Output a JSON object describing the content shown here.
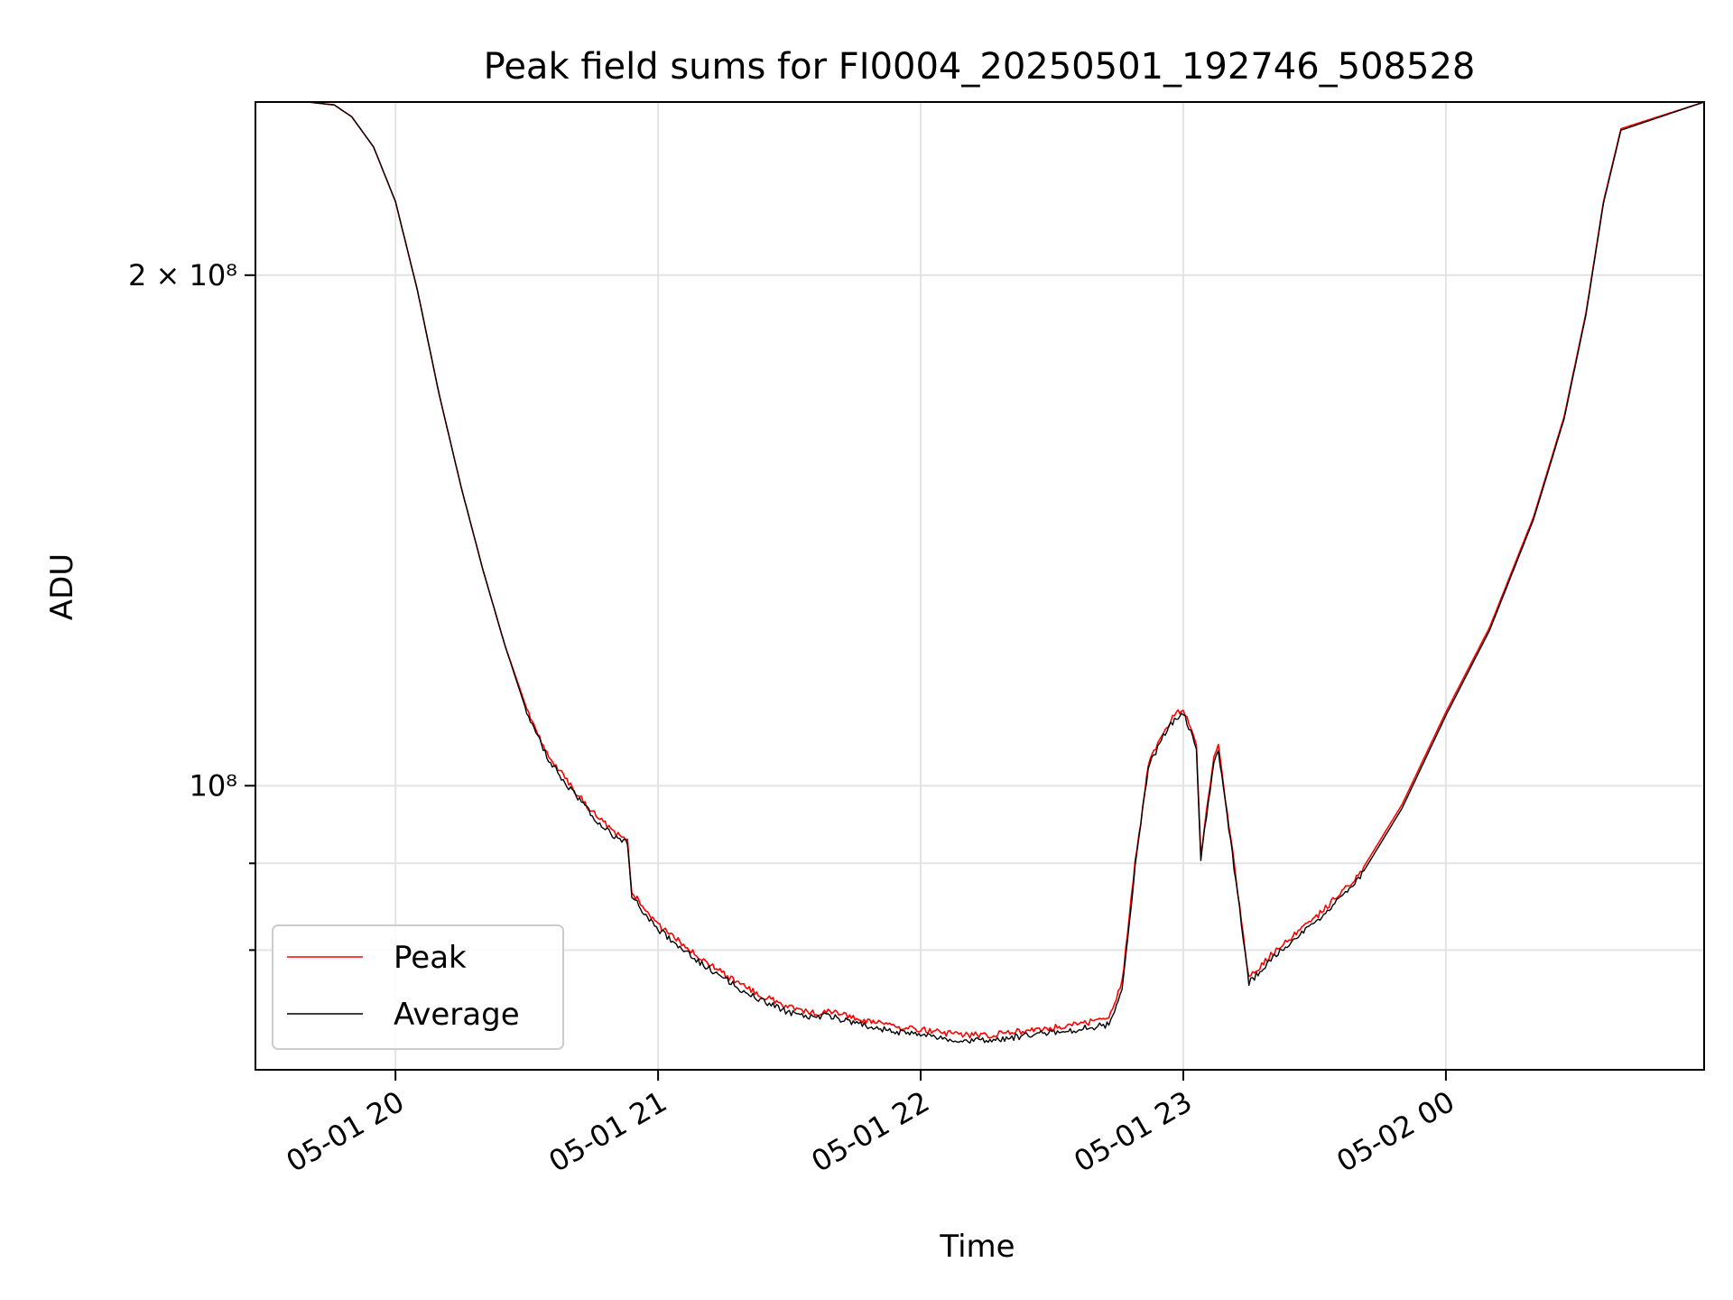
{
  "chart_data": {
    "type": "line",
    "title": "Peak field sums for FI0004_20250501_192746_508528",
    "xlabel": "Time",
    "ylabel": "ADU",
    "yscale": "log",
    "grid": true,
    "legend_position": "lower-left",
    "xlim": [
      "2025-05-01 19:28",
      "2025-05-02 00:59"
    ],
    "ylim": [
      68000000,
      253000000
    ],
    "x_ticks": [
      {
        "value": "2025-05-01 20:00",
        "label": "05-01 20"
      },
      {
        "value": "2025-05-01 21:00",
        "label": "05-01 21"
      },
      {
        "value": "2025-05-01 22:00",
        "label": "05-01 22"
      },
      {
        "value": "2025-05-01 23:00",
        "label": "05-01 23"
      },
      {
        "value": "2025-05-02 00:00",
        "label": "05-02 00"
      }
    ],
    "y_ticks": [
      {
        "value": 200000000,
        "label": "2 × 10⁸"
      },
      {
        "value": 100000000,
        "label": "10⁸"
      }
    ],
    "y_minor_ticks": [
      80000000,
      90000000
    ],
    "series": [
      {
        "name": "Peak",
        "color": "#ff0000",
        "x": [
          "2025-05-01 19:28",
          "2025-05-01 19:40",
          "2025-05-01 19:46",
          "2025-05-01 19:50",
          "2025-05-01 19:55",
          "2025-05-01 20:00",
          "2025-05-01 20:05",
          "2025-05-01 20:10",
          "2025-05-01 20:15",
          "2025-05-01 20:20",
          "2025-05-01 20:25",
          "2025-05-01 20:30",
          "2025-05-01 20:35",
          "2025-05-01 20:40",
          "2025-05-01 20:45",
          "2025-05-01 20:50",
          "2025-05-01 20:53",
          "2025-05-01 20:54",
          "2025-05-01 21:00",
          "2025-05-01 21:10",
          "2025-05-01 21:20",
          "2025-05-01 21:30",
          "2025-05-01 21:37",
          "2025-05-01 21:38",
          "2025-05-01 21:45",
          "2025-05-01 21:55",
          "2025-05-01 22:05",
          "2025-05-01 22:15",
          "2025-05-01 22:25",
          "2025-05-01 22:35",
          "2025-05-01 22:43",
          "2025-05-01 22:46",
          "2025-05-01 22:49",
          "2025-05-01 22:52",
          "2025-05-01 22:55",
          "2025-05-01 22:58",
          "2025-05-01 23:00",
          "2025-05-01 23:03",
          "2025-05-01 23:04",
          "2025-05-01 23:07",
          "2025-05-01 23:08",
          "2025-05-01 23:12",
          "2025-05-01 23:15",
          "2025-05-01 23:20",
          "2025-05-01 23:30",
          "2025-05-01 23:40",
          "2025-05-01 23:50",
          "2025-05-02 00:00",
          "2025-05-02 00:10",
          "2025-05-02 00:20",
          "2025-05-02 00:27",
          "2025-05-02 00:32",
          "2025-05-02 00:36",
          "2025-05-02 00:40",
          "2025-05-02 00:59"
        ],
        "values": [
          253000000,
          253000000,
          252000000,
          248000000,
          238000000,
          221000000,
          196000000,
          170000000,
          150000000,
          134000000,
          121000000,
          111000000,
          104000000,
          100000000,
          96500000,
          93800000,
          93000000,
          86500000,
          82800000,
          79000000,
          76000000,
          74000000,
          73400000,
          73800000,
          72900000,
          72100000,
          71500000,
          71200000,
          71800000,
          72300000,
          72800000,
          76500000,
          90000000,
          103000000,
          107000000,
          110000000,
          111000000,
          106000000,
          91000000,
          104000000,
          105500000,
          88500000,
          77000000,
          79500000,
          83500000,
          88500000,
          97500000,
          110500000,
          124000000,
          144000000,
          165000000,
          190000000,
          221000000,
          244000000,
          253000000
        ]
      },
      {
        "name": "Average",
        "color": "#000000",
        "x": [
          "2025-05-01 19:28",
          "2025-05-01 19:40",
          "2025-05-01 19:46",
          "2025-05-01 19:50",
          "2025-05-01 19:55",
          "2025-05-01 20:00",
          "2025-05-01 20:05",
          "2025-05-01 20:10",
          "2025-05-01 20:15",
          "2025-05-01 20:20",
          "2025-05-01 20:25",
          "2025-05-01 20:30",
          "2025-05-01 20:35",
          "2025-05-01 20:40",
          "2025-05-01 20:45",
          "2025-05-01 20:50",
          "2025-05-01 20:53",
          "2025-05-01 20:54",
          "2025-05-01 21:00",
          "2025-05-01 21:10",
          "2025-05-01 21:20",
          "2025-05-01 21:30",
          "2025-05-01 21:37",
          "2025-05-01 21:38",
          "2025-05-01 21:45",
          "2025-05-01 21:55",
          "2025-05-01 22:05",
          "2025-05-01 22:15",
          "2025-05-01 22:25",
          "2025-05-01 22:35",
          "2025-05-01 22:43",
          "2025-05-01 22:46",
          "2025-05-01 22:49",
          "2025-05-01 22:52",
          "2025-05-01 22:55",
          "2025-05-01 22:58",
          "2025-05-01 23:00",
          "2025-05-01 23:03",
          "2025-05-01 23:04",
          "2025-05-01 23:07",
          "2025-05-01 23:08",
          "2025-05-01 23:12",
          "2025-05-01 23:15",
          "2025-05-01 23:20",
          "2025-05-01 23:30",
          "2025-05-01 23:40",
          "2025-05-01 23:50",
          "2025-05-02 00:00",
          "2025-05-02 00:10",
          "2025-05-02 00:20",
          "2025-05-02 00:27",
          "2025-05-02 00:32",
          "2025-05-02 00:36",
          "2025-05-02 00:40",
          "2025-05-02 00:59"
        ],
        "values": [
          253000000,
          253000000,
          252000000,
          248000000,
          238000000,
          221000000,
          196000000,
          170000000,
          150000000,
          134000000,
          121000000,
          110500000,
          103500000,
          99500000,
          96000000,
          93300000,
          92500000,
          86000000,
          82300000,
          78500000,
          75500000,
          73500000,
          72900000,
          73300000,
          72400000,
          71600000,
          71000000,
          70700000,
          71300000,
          71800000,
          72300000,
          76000000,
          89500000,
          102500000,
          106500000,
          109500000,
          110500000,
          105500000,
          90500000,
          103500000,
          105000000,
          88000000,
          76500000,
          79000000,
          83000000,
          88000000,
          97000000,
          110000000,
          123500000,
          143500000,
          164500000,
          189500000,
          220500000,
          243500000,
          253000000
        ]
      }
    ]
  }
}
